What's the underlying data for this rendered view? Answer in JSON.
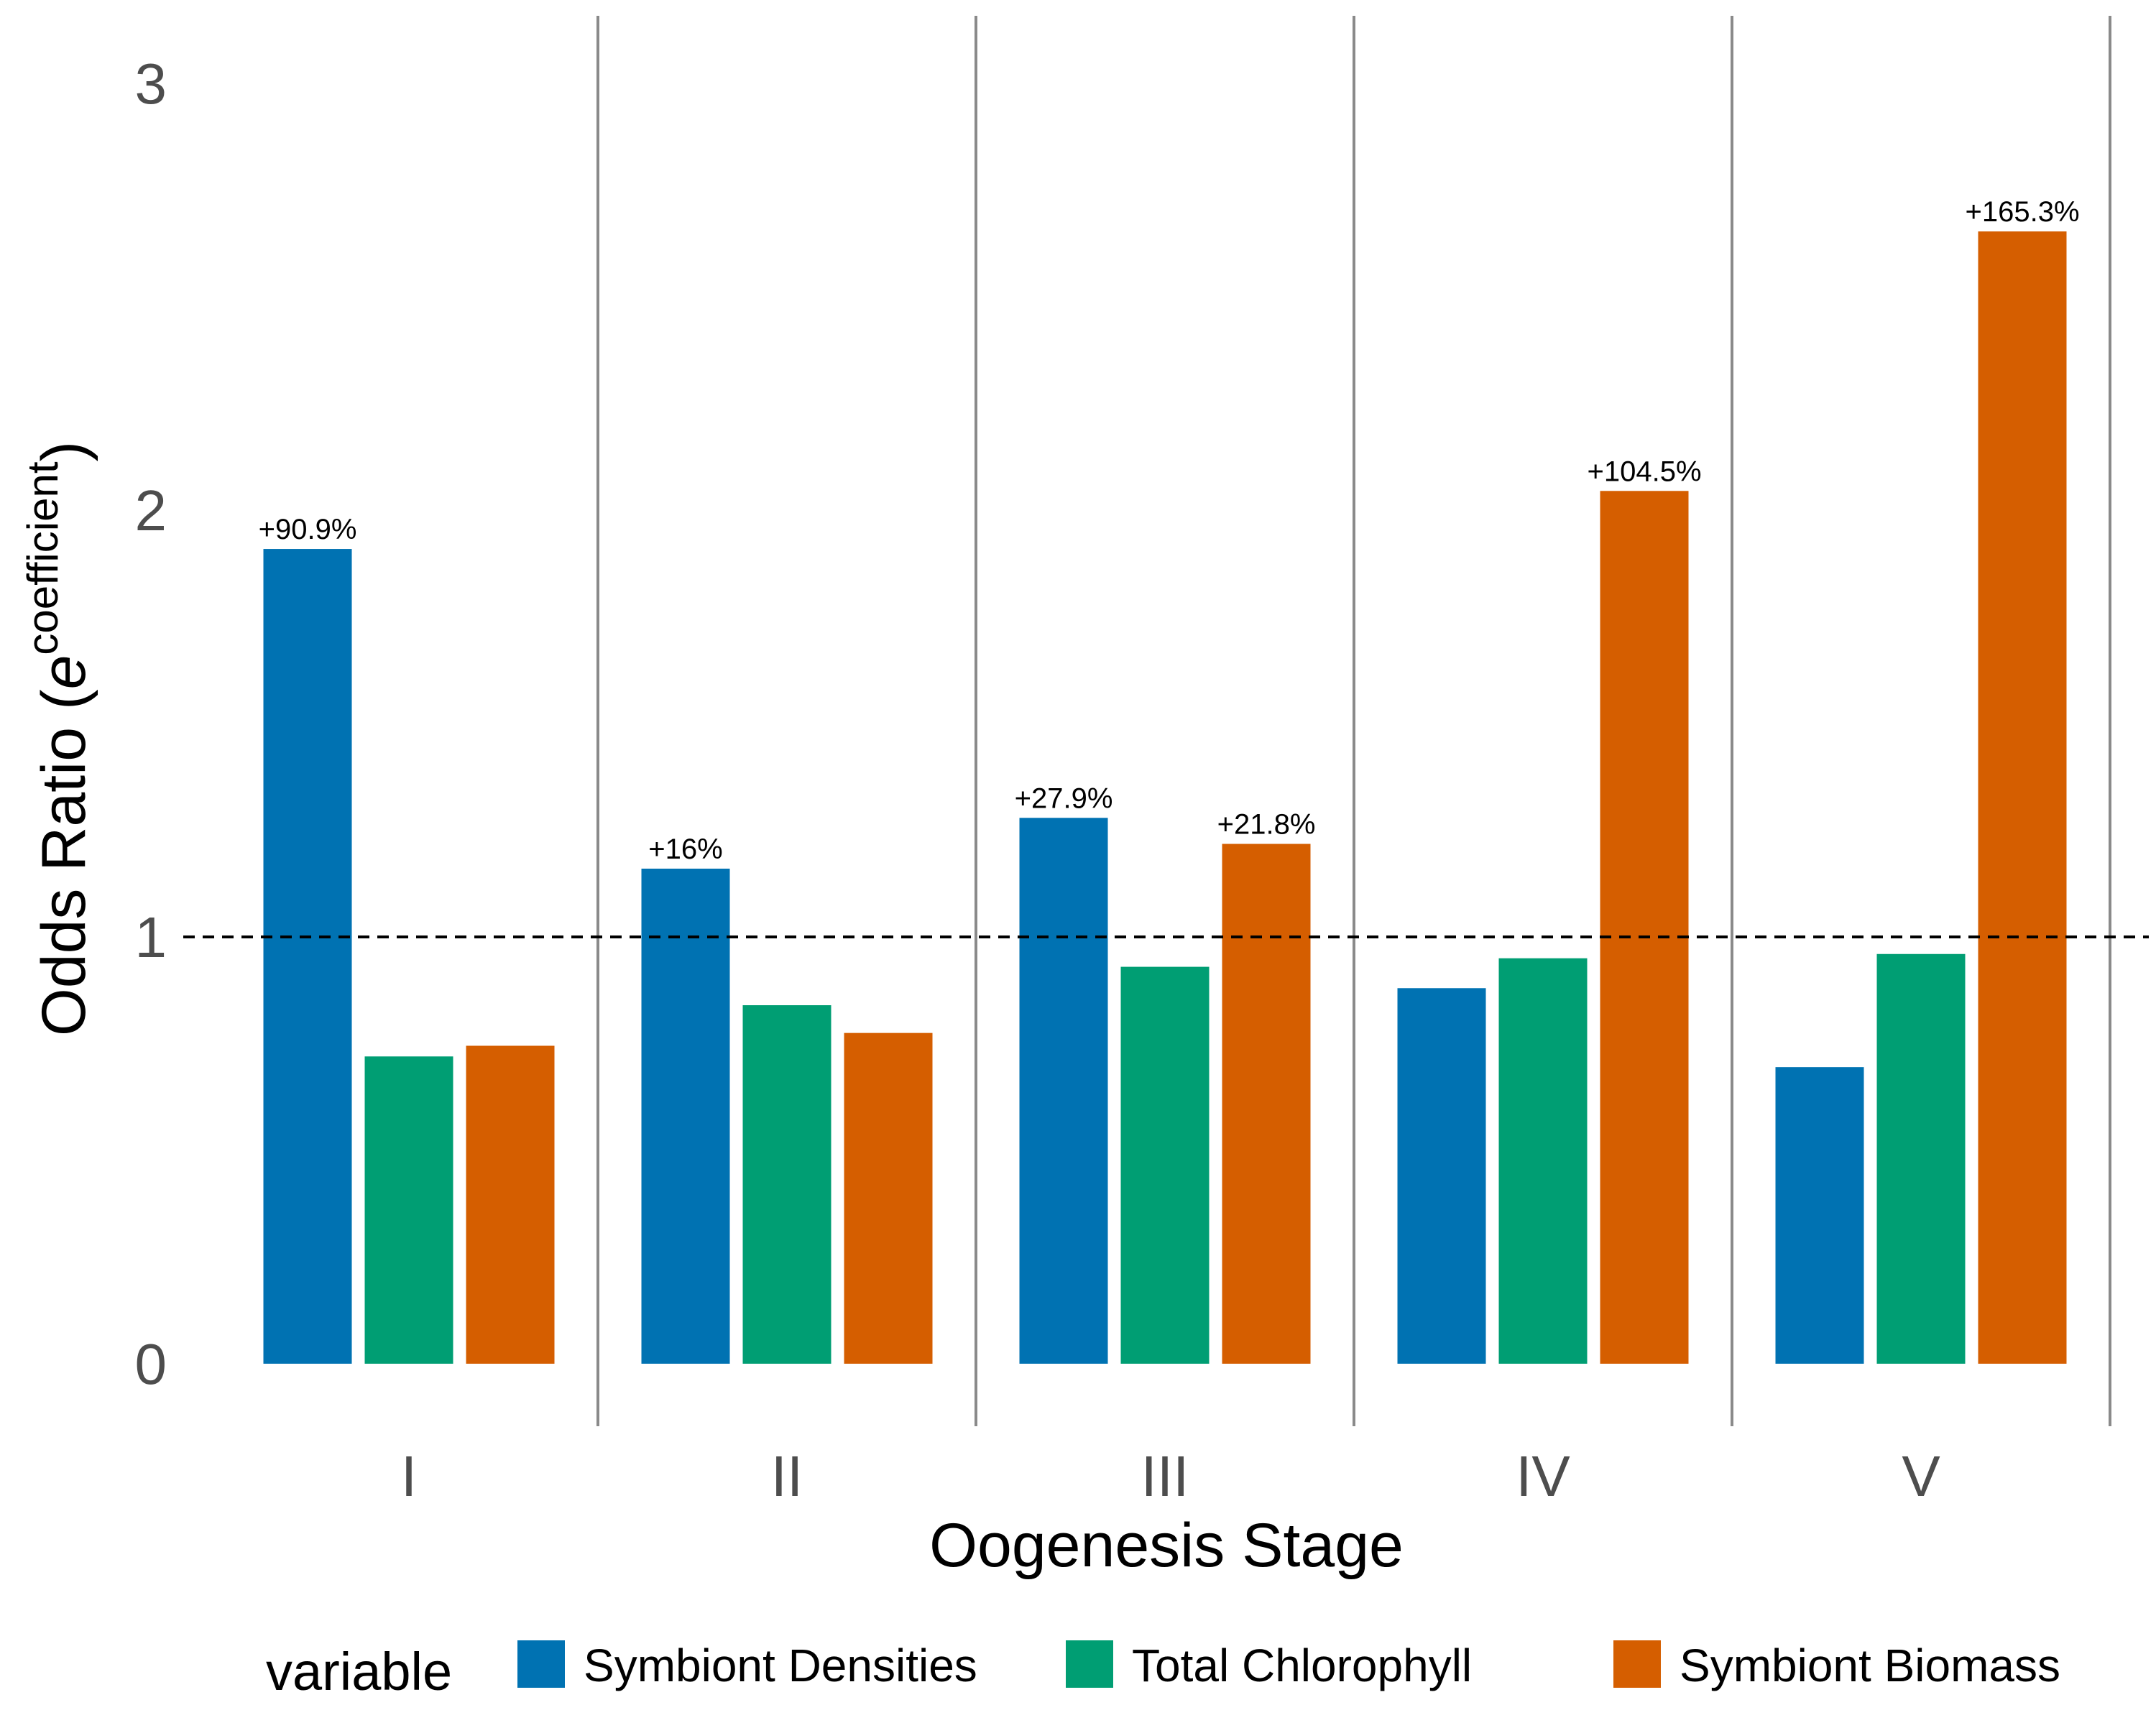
{
  "chart_data": {
    "type": "bar",
    "xlabel": "Oogenesis Stage",
    "ylabel": {
      "prefix": "Odds Ratio (",
      "base": "e",
      "superscript": "coefficient",
      "suffix": ")"
    },
    "categories": [
      "I",
      "II",
      "III",
      "IV",
      "V"
    ],
    "ylim": [
      -0.15,
      3.15
    ],
    "yticks": [
      0,
      1,
      2,
      3
    ],
    "grid": false,
    "reference_line": {
      "y": 1,
      "style": "dashed"
    },
    "legend": {
      "title": "variable",
      "position": "bottom"
    },
    "series": [
      {
        "name": "Symbiont Densities",
        "color": "#0072B2",
        "values": [
          1.909,
          1.16,
          1.279,
          0.88,
          0.695
        ]
      },
      {
        "name": "Total Chlorophyll",
        "color": "#009E73",
        "values": [
          0.72,
          0.84,
          0.93,
          0.95,
          0.96
        ]
      },
      {
        "name": "Symbiont Biomass",
        "color": "#D55E00",
        "values": [
          0.745,
          0.775,
          1.218,
          2.045,
          2.653
        ]
      }
    ],
    "data_labels": [
      {
        "series": 0,
        "category": 0,
        "text": "+90.9%"
      },
      {
        "series": 0,
        "category": 1,
        "text": "+16%"
      },
      {
        "series": 0,
        "category": 2,
        "text": "+27.9%"
      },
      {
        "series": 2,
        "category": 2,
        "text": "+21.8%"
      },
      {
        "series": 2,
        "category": 3,
        "text": "+104.5%"
      },
      {
        "series": 2,
        "category": 4,
        "text": "+165.3%"
      }
    ]
  }
}
